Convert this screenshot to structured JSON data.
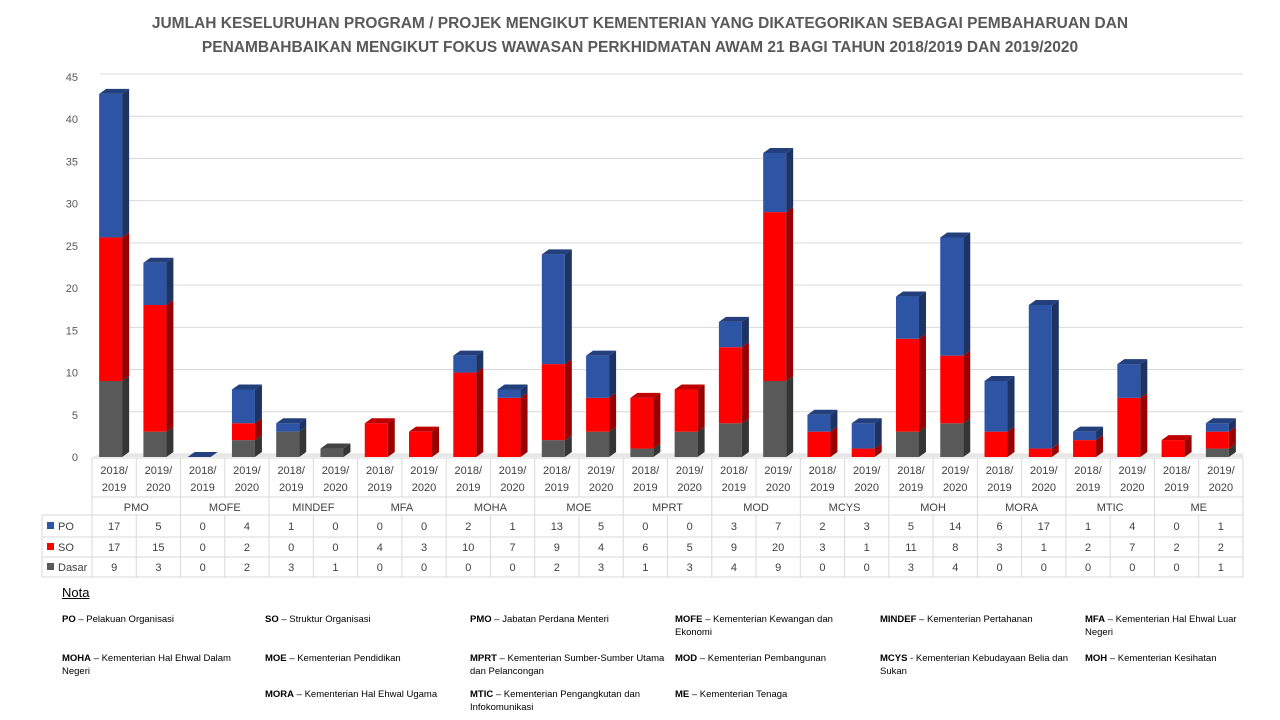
{
  "title_lines": [
    "JUMLAH KESELURUHAN PROGRAM / PROJEK MENGIKUT KEMENTERIAN YANG DIKATEGORIKAN SEBAGAI PEMBAHARUAN DAN",
    "PENAMBAHBAIKAN MENGIKUT FOKUS WAWASAN PERKHIDMATAN AWAM 21 BAGI TAHUN 2018/2019 DAN 2019/2020"
  ],
  "chart_data": {
    "type": "bar",
    "stacked": true,
    "ylim": [
      0,
      45
    ],
    "yticks": [
      0,
      5,
      10,
      15,
      20,
      25,
      30,
      35,
      40,
      45
    ],
    "grid": true,
    "groups": [
      "PMO",
      "MOFE",
      "MINDEF",
      "MFA",
      "MOHA",
      "MOE",
      "MPRT",
      "MOD",
      "MCYS",
      "MOH",
      "MORA",
      "MTIC",
      "ME"
    ],
    "periods": [
      [
        "2018/",
        "2019"
      ],
      [
        "2019/",
        "2020"
      ]
    ],
    "series": [
      {
        "name": "PO",
        "color": "#2E55A5",
        "values": [
          17,
          5,
          0,
          4,
          1,
          0,
          0,
          0,
          2,
          1,
          13,
          5,
          0,
          0,
          3,
          7,
          2,
          3,
          5,
          14,
          6,
          17,
          1,
          4,
          0,
          1
        ]
      },
      {
        "name": "SO",
        "color": "#FF0000",
        "values": [
          17,
          15,
          0,
          2,
          0,
          0,
          4,
          3,
          10,
          7,
          9,
          4,
          6,
          5,
          9,
          20,
          3,
          1,
          11,
          8,
          3,
          1,
          2,
          7,
          2,
          2
        ]
      },
      {
        "name": "Dasar",
        "color": "#595959",
        "values": [
          9,
          3,
          0,
          2,
          3,
          1,
          0,
          0,
          0,
          0,
          2,
          3,
          1,
          3,
          4,
          9,
          0,
          0,
          3,
          4,
          0,
          0,
          0,
          0,
          0,
          1
        ]
      }
    ]
  },
  "nota": {
    "title": "Nota",
    "items": [
      {
        "abbr": "PO",
        "text": " – Pelakuan Organisasi"
      },
      {
        "abbr": "SO",
        "text": " – Struktur Organisasi"
      },
      {
        "abbr": "PMO",
        "text": " – Jabatan Perdana Menteri"
      },
      {
        "abbr": "MOFE",
        "text": " – Kementerian Kewangan dan Ekonomi"
      },
      {
        "abbr": "MINDEF",
        "text": " – Kementerian Pertahanan"
      },
      {
        "abbr": "MFA",
        "text": " – Kementerian Hal Ehwal Luar Negeri"
      },
      {
        "abbr": "MOHA",
        "text": " – Kementerian Hal Ehwal Dalam Negeri"
      },
      {
        "abbr": "MOE",
        "text": " – Kementerian Pendidikan"
      },
      {
        "abbr": "MPRT",
        "text": " – Kementerian Sumber-Sumber Utama dan Pelancongan"
      },
      {
        "abbr": "MOD",
        "text": " – Kementerian Pembangunan"
      },
      {
        "abbr": "MCYS",
        "text": " - Kementerian Kebudayaan Belia dan Sukan"
      },
      {
        "abbr": "MOH",
        "text": " – Kementerian Kesihatan"
      },
      {
        "abbr": "MORA",
        "text": " – Kementerian Hal Ehwal Ugama"
      },
      {
        "abbr": "MTIC",
        "text": " – Kementerian Pengangkutan dan Infokomunikasi"
      },
      {
        "abbr": "ME",
        "text": " – Kementerian Tenaga"
      }
    ]
  }
}
